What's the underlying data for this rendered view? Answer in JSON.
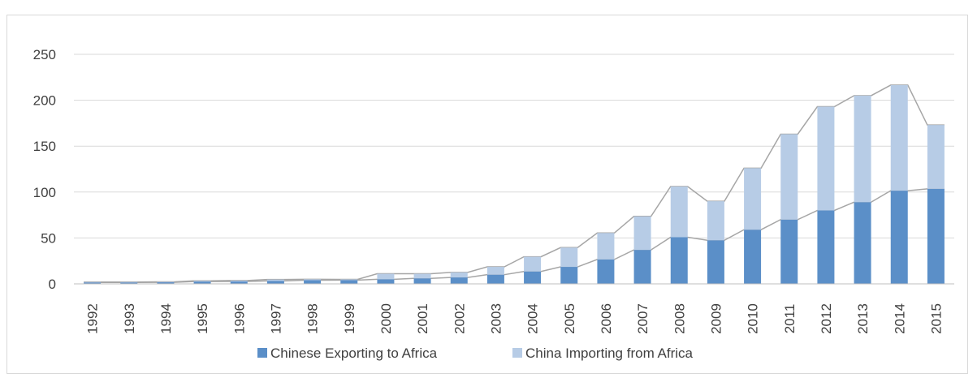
{
  "chart_data": {
    "type": "bar",
    "stacked": true,
    "title": "",
    "xlabel": "",
    "ylabel": "",
    "ylim": [
      0,
      250
    ],
    "yticks": [
      0,
      50,
      100,
      150,
      200,
      250
    ],
    "grid": true,
    "legend_position": "bottom",
    "categories": [
      "1992",
      "1993",
      "1994",
      "1995",
      "1996",
      "1997",
      "1998",
      "1999",
      "2000",
      "2001",
      "2002",
      "2003",
      "2004",
      "2005",
      "2006",
      "2007",
      "2008",
      "2009",
      "2010",
      "2011",
      "2012",
      "2013",
      "2014",
      "2015"
    ],
    "series": [
      {
        "name": "Chinese Exporting to Africa",
        "color": "#5b8fc8",
        "values": [
          1.5,
          1.5,
          1.7,
          2.5,
          2.6,
          3.2,
          4.0,
          4.1,
          5.0,
          6.0,
          7.0,
          10.0,
          13.5,
          18.5,
          26.6,
          37.0,
          50.8,
          47.5,
          59.0,
          70.0,
          80.0,
          89.0,
          101.5,
          103.5
        ]
      },
      {
        "name": "China Importing from Africa",
        "color": "#b7cce6",
        "values": [
          0.5,
          0.5,
          0.5,
          0.8,
          1.0,
          1.5,
          1.0,
          0.8,
          6.0,
          5.0,
          5.5,
          8.5,
          16.0,
          21.0,
          28.8,
          36.5,
          55.2,
          42.5,
          67.0,
          93.0,
          113.0,
          116.0,
          115.0,
          69.5
        ]
      }
    ]
  }
}
